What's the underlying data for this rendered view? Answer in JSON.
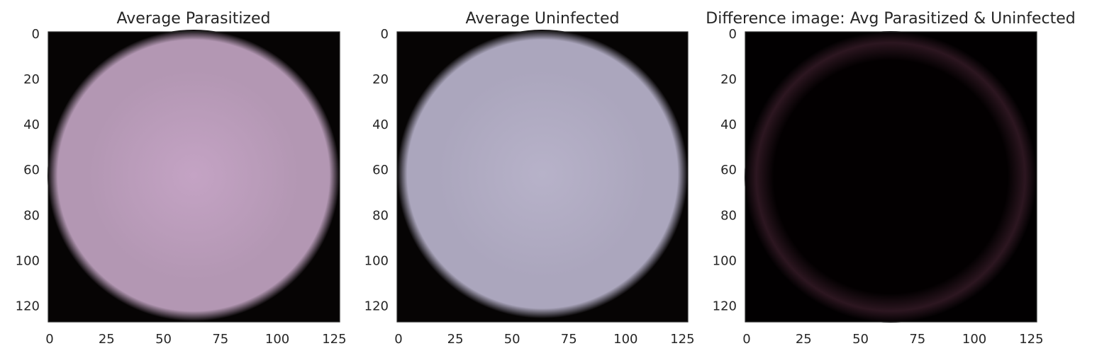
{
  "chart_data": [
    {
      "type": "heatmap",
      "title": "Average Parasitized",
      "x_ticks": [
        "0",
        "25",
        "50",
        "75",
        "100",
        "125"
      ],
      "y_ticks": [
        "0",
        "20",
        "40",
        "60",
        "80",
        "100",
        "120"
      ],
      "xlim": [
        0,
        128
      ],
      "ylim": [
        128,
        0
      ],
      "grid": false,
      "colors": {
        "cell": "#b397b3",
        "center": "#c4a3c4",
        "background": "#060404"
      }
    },
    {
      "type": "heatmap",
      "title": "Average Uninfected",
      "x_ticks": [
        "0",
        "25",
        "50",
        "75",
        "100",
        "125"
      ],
      "y_ticks": [
        "0",
        "20",
        "40",
        "60",
        "80",
        "100",
        "120"
      ],
      "xlim": [
        0,
        128
      ],
      "ylim": [
        128,
        0
      ],
      "grid": false,
      "colors": {
        "cell": "#aba6bd",
        "center": "#b7b2c9",
        "background": "#060404"
      }
    },
    {
      "type": "heatmap",
      "title": "Difference image: Avg Parasitized & Uninfected",
      "x_ticks": [
        "0",
        "25",
        "50",
        "75",
        "100",
        "125"
      ],
      "y_ticks": [
        "0",
        "20",
        "40",
        "60",
        "80",
        "100",
        "120"
      ],
      "xlim": [
        0,
        128
      ],
      "ylim": [
        128,
        0
      ],
      "grid": false,
      "colors": {
        "cell": "#030001",
        "ring": "#2c1620",
        "background": "#020001"
      }
    }
  ]
}
